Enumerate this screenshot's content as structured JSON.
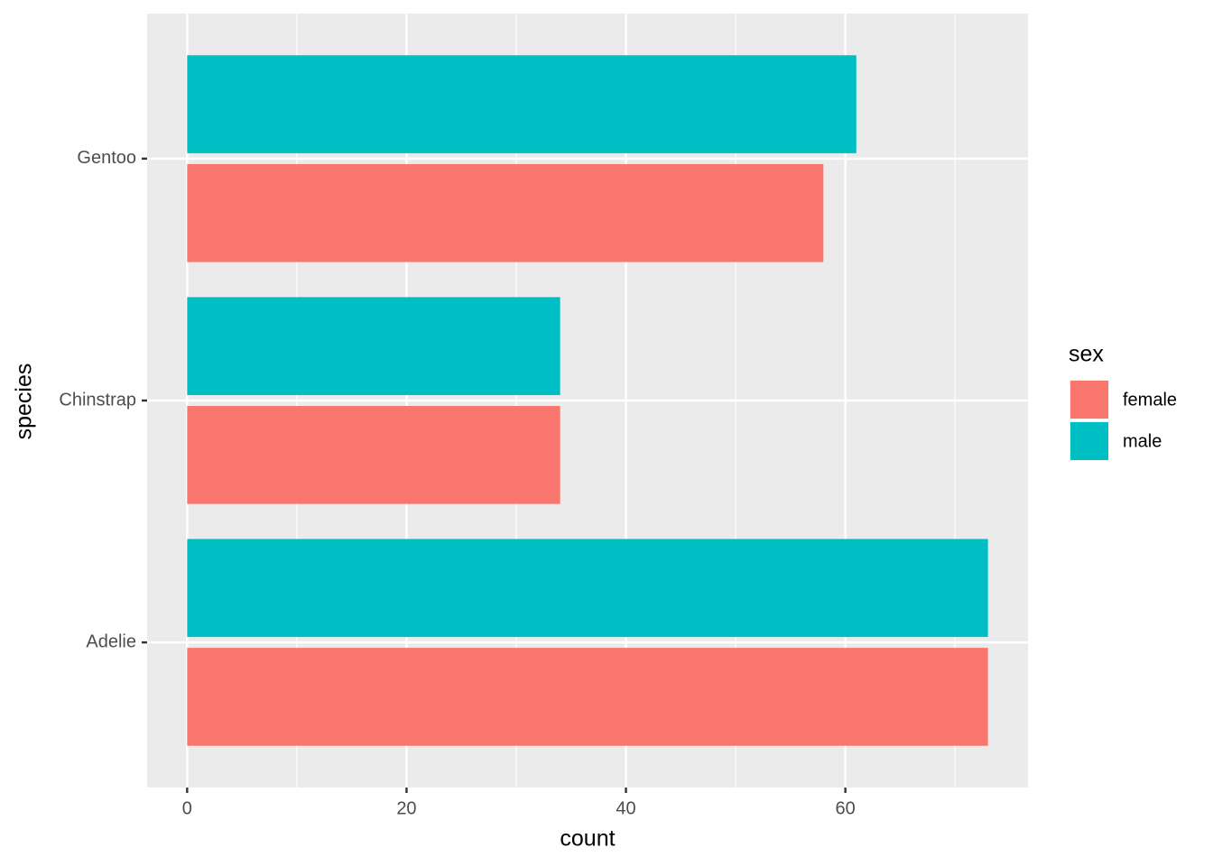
{
  "chart_data": {
    "type": "bar",
    "orientation": "horizontal",
    "x_label": "count",
    "y_label": "species",
    "categories": [
      "Adelie",
      "Chinstrap",
      "Gentoo"
    ],
    "series": [
      {
        "name": "female",
        "color": "#f8766d",
        "values": [
          73,
          34,
          58
        ]
      },
      {
        "name": "male",
        "color": "#00bfc4",
        "values": [
          73,
          34,
          61
        ]
      }
    ],
    "xlim": [
      -3.65,
      76.65
    ],
    "xticks": [
      0,
      20,
      40,
      60
    ],
    "x_minor_ticks": [
      10,
      30,
      50,
      70
    ],
    "grid": true,
    "legend_title": "sex",
    "legend_position": "right"
  }
}
